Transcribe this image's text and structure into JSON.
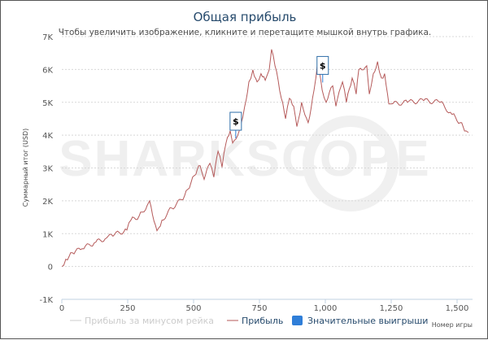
{
  "chart_data": {
    "type": "line",
    "title": "Общая прибыль",
    "subtitle": "Чтобы увеличить изображение, кликните и перетащите мышкой внутрь графика.",
    "xlabel": "Номер игры",
    "ylabel": "Суммарный итог (USD)",
    "xlim": [
      0,
      1560
    ],
    "ylim": [
      -1000,
      7000
    ],
    "x_ticks": [
      {
        "v": 0,
        "label": "0"
      },
      {
        "v": 250,
        "label": "250"
      },
      {
        "v": 500,
        "label": "500"
      },
      {
        "v": 750,
        "label": "750"
      },
      {
        "v": 1000,
        "label": "1,000"
      },
      {
        "v": 1250,
        "label": "1,250"
      },
      {
        "v": 1500,
        "label": "1,500"
      }
    ],
    "y_ticks": [
      {
        "v": -1000,
        "label": "-1K"
      },
      {
        "v": 0,
        "label": "0"
      },
      {
        "v": 1000,
        "label": "1K"
      },
      {
        "v": 2000,
        "label": "2K"
      },
      {
        "v": 3000,
        "label": "3K"
      },
      {
        "v": 4000,
        "label": "4K"
      },
      {
        "v": 5000,
        "label": "5K"
      },
      {
        "v": 6000,
        "label": "6K"
      },
      {
        "v": 7000,
        "label": "7K"
      }
    ],
    "grid": true,
    "legend_position": "bottom",
    "series": [
      {
        "name": "Прибыль за минусом рейка",
        "color": "#cccccc",
        "visible": false,
        "x": [],
        "y": []
      },
      {
        "name": "Прибыль",
        "color": "#b55a5a",
        "x": [
          0,
          15,
          40,
          77,
          123,
          170,
          200,
          247,
          262,
          293,
          324,
          333,
          361,
          380,
          417,
          454,
          478,
          503,
          525,
          540,
          562,
          577,
          593,
          608,
          623,
          639,
          648,
          673,
          694,
          710,
          725,
          741,
          756,
          772,
          787,
          796,
          809,
          833,
          849,
          864,
          880,
          892,
          910,
          935,
          957,
          972,
          988,
          1003,
          1028,
          1040,
          1065,
          1080,
          1102,
          1117,
          1127,
          1157,
          1167,
          1182,
          1198,
          1213,
          1225,
          1241,
          1250,
          1312,
          1373,
          1435,
          1481,
          1512,
          1534,
          1543
        ],
        "y": [
          0,
          220,
          420,
          540,
          720,
          870,
          970,
          1110,
          1410,
          1530,
          1860,
          2000,
          1090,
          1410,
          1780,
          2030,
          2350,
          2770,
          3070,
          2650,
          3140,
          2720,
          3510,
          3020,
          3760,
          4130,
          3760,
          4130,
          4880,
          5620,
          5990,
          5620,
          5870,
          5670,
          5990,
          6610,
          6110,
          5120,
          4500,
          5120,
          4880,
          4260,
          5000,
          4380,
          5370,
          6310,
          5370,
          5000,
          5500,
          4880,
          5620,
          5000,
          5740,
          5250,
          5990,
          6110,
          5250,
          5870,
          6240,
          5740,
          5870,
          4950,
          4950,
          5000,
          5050,
          5000,
          4630,
          4380,
          4130,
          4080
        ]
      }
    ],
    "flags": [
      {
        "series": "Значительные выигрыши",
        "x": 660,
        "y": 4200,
        "text": "$"
      },
      {
        "series": "Значительные выигрыши",
        "x": 990,
        "y": 5900,
        "text": "$"
      }
    ],
    "legend": [
      {
        "label": "Прибыль за минусом рейка",
        "color": "#cccccc",
        "symbol": "line",
        "active": false
      },
      {
        "label": "Прибыль",
        "color": "#b55a5a",
        "symbol": "line",
        "active": true
      },
      {
        "label": "Значительные выигрыши",
        "color": "#2f7ed8",
        "symbol": "square",
        "active": true
      }
    ],
    "watermark": "SHARKSCOPE"
  }
}
